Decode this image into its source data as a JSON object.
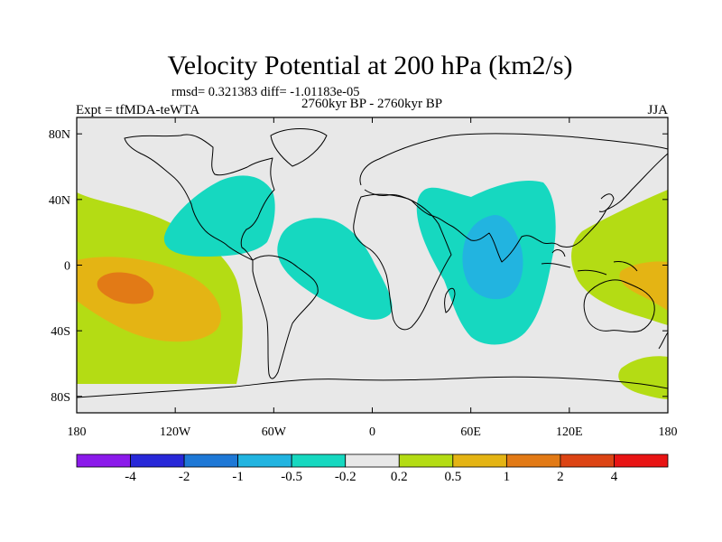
{
  "title": "Velocity Potential at 200 hPa (km2/s)",
  "stats_line": "rmsd= 0.321383 diff= -1.01183e-05",
  "experiment_label": "Expt = tfMDA-teWTA",
  "period_label": "2760kyr BP - 2760kyr BP",
  "season_label": "JJA",
  "chart_data": {
    "type": "heatmap",
    "title": "Velocity Potential at 200 hPa (km2/s)",
    "xlim": [
      -180,
      180
    ],
    "ylim": [
      -90,
      90
    ],
    "x_ticks": [
      {
        "value": -180,
        "label": "180"
      },
      {
        "value": -120,
        "label": "120W"
      },
      {
        "value": -60,
        "label": "60W"
      },
      {
        "value": 0,
        "label": "0"
      },
      {
        "value": 60,
        "label": "60E"
      },
      {
        "value": 120,
        "label": "120E"
      },
      {
        "value": 180,
        "label": "180"
      }
    ],
    "y_ticks": [
      {
        "value": 80,
        "label": "80N"
      },
      {
        "value": 40,
        "label": "40N"
      },
      {
        "value": 0,
        "label": "0"
      },
      {
        "value": -40,
        "label": "40S"
      },
      {
        "value": -80,
        "label": "80S"
      }
    ],
    "colorbar": {
      "boundaries": [
        "-4",
        "-2",
        "-1",
        "-0.5",
        "-0.2",
        "0.2",
        "0.5",
        "1",
        "2",
        "4"
      ],
      "colors": [
        "#8b1aea",
        "#2828d8",
        "#1e78d6",
        "#22b4e0",
        "#16d8c0",
        "#e8e8e8",
        "#b4dc14",
        "#e4b414",
        "#e27a16",
        "#dc4414",
        "#e81414"
      ]
    },
    "regions": [
      {
        "name": "west-pacific-positive",
        "level": "0.2 to 0.5",
        "color": "#b4dc14"
      },
      {
        "name": "west-pacific-core",
        "level": "0.5 to 1",
        "color": "#e4b414"
      },
      {
        "name": "west-pacific-peak",
        "level": "1 to 2",
        "color": "#e27a16"
      },
      {
        "name": "north-america-negative",
        "level": "-0.5 to -0.2",
        "color": "#16d8c0"
      },
      {
        "name": "atlantic-negative",
        "level": "-0.5 to -0.2",
        "color": "#16d8c0"
      },
      {
        "name": "indian-ocean-negative",
        "level": "-0.5 to -0.2",
        "color": "#16d8c0"
      },
      {
        "name": "indian-ocean-core",
        "level": "-1 to -0.5",
        "color": "#22b4e0"
      },
      {
        "name": "maritime-positive",
        "level": "0.2 to 0.5",
        "color": "#b4dc14"
      },
      {
        "name": "maritime-core",
        "level": "0.5 to 1",
        "color": "#e4b414"
      },
      {
        "name": "south-pacific-positive",
        "level": "0.2 to 0.5",
        "color": "#b4dc14"
      }
    ]
  }
}
